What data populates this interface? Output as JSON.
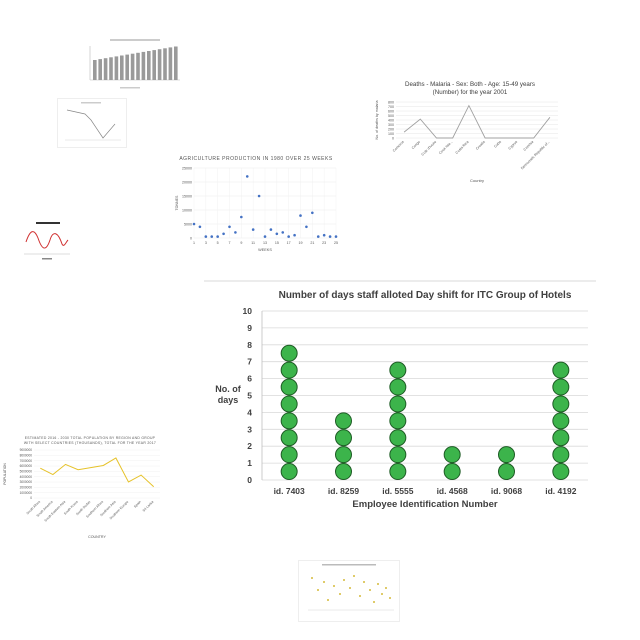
{
  "chart_data": [
    {
      "type": "scatter",
      "title": "Number of days staff alloted Day shift for ITC Group of Hotels",
      "xlabel": "Employee Identification Number",
      "ylabel": "No. of days",
      "categories": [
        "id. 7403",
        "id. 8259",
        "id. 5555",
        "id. 4568",
        "id. 9068",
        "id. 4192"
      ],
      "values": [
        8,
        4,
        7,
        2,
        2,
        7
      ],
      "ylim": [
        0,
        10
      ],
      "yticks": [
        "0",
        "1",
        "2",
        "3",
        "4",
        "5",
        "6",
        "7",
        "8",
        "9",
        "10"
      ],
      "grid": true,
      "marker_color": "#3cb44b",
      "marker_edge": "#1e5c25"
    },
    {
      "type": "line",
      "title": "Deaths - Malaria - Sex: Both - Age: 15-49 years (Number) for the year 2001",
      "title_lines": [
        "Deaths - Malaria - Sex: Both - Age: 15-49 years",
        "(Number) for the year 2001"
      ],
      "xlabel": "Country",
      "ylabel": "No. of deaths by malaria",
      "categories": [
        "Comoros",
        "Congo",
        "Cote d'Ivoire",
        "Cook Isla...",
        "Costa Rica",
        "Croatia",
        "Cuba",
        "Cyprus",
        "Czechia",
        "Democratic Republic of..."
      ],
      "values": [
        130,
        420,
        0,
        0,
        720,
        0,
        0,
        0,
        0,
        460
      ],
      "ylim": [
        0,
        800
      ],
      "yticks": [
        "0",
        "100",
        "200",
        "300",
        "400",
        "500",
        "600",
        "700",
        "800"
      ],
      "color": "#a0a0a0"
    },
    {
      "type": "scatter",
      "title": "AGRICULTURE PRODUCTION IN 1980 OVER 25 WEEKS",
      "xlabel": "WEEKS",
      "ylabel": "TONNES",
      "x": [
        1,
        2,
        3,
        4,
        5,
        6,
        7,
        8,
        9,
        10,
        11,
        12,
        13,
        14,
        15,
        16,
        17,
        18,
        19,
        20,
        21,
        22,
        23,
        24,
        25
      ],
      "y": [
        5000,
        4000,
        500,
        500,
        500,
        1500,
        4000,
        2000,
        7500,
        22000,
        3000,
        15000,
        500,
        3000,
        1500,
        2000,
        500,
        1000,
        8000,
        4000,
        9000,
        500,
        1000,
        500,
        500
      ],
      "ylim": [
        0,
        25000
      ],
      "yticks": [
        "0",
        "5000",
        "10000",
        "15000",
        "20000",
        "25000"
      ],
      "xticks": [
        "1",
        "3",
        "5",
        "7",
        "9",
        "11",
        "13",
        "15",
        "17",
        "19",
        "21",
        "23",
        "25"
      ],
      "color": "#4472c4"
    },
    {
      "type": "line",
      "title": "ESTIMATED 2016 - 2030 TOTAL POPULATION BY REGION AND GROUP WITH SELECT COUNTRIES (THOUSANDS), TOTAL FOR THE YEAR 2017",
      "title_lines": [
        "ESTIMATED 2016 - 2030 TOTAL POPULATION BY REGION AND GROUP",
        "WITH SELECT COUNTRIES (THOUSANDS), TOTAL FOR THE YEAR 2017"
      ],
      "xlabel": "COUNTRY",
      "ylabel": "POPULATION",
      "categories": [
        "South Africa",
        "South America",
        "South Eastern Asia",
        "South Korea",
        "South Sudan",
        "Southern Africa",
        "Southern Asia",
        "Southern Europe",
        "Spain",
        "Sri Lanka"
      ],
      "values": [
        5600000,
        4400000,
        6300000,
        5300000,
        5700000,
        6100000,
        7500000,
        3000000,
        4300000,
        2100000
      ],
      "ylim": [
        0,
        9000000
      ],
      "yticks": [
        "0",
        "1000000",
        "2000000",
        "3000000",
        "4000000",
        "5000000",
        "6000000",
        "7000000",
        "8000000",
        "9000000"
      ],
      "color": "#e6c229"
    }
  ]
}
